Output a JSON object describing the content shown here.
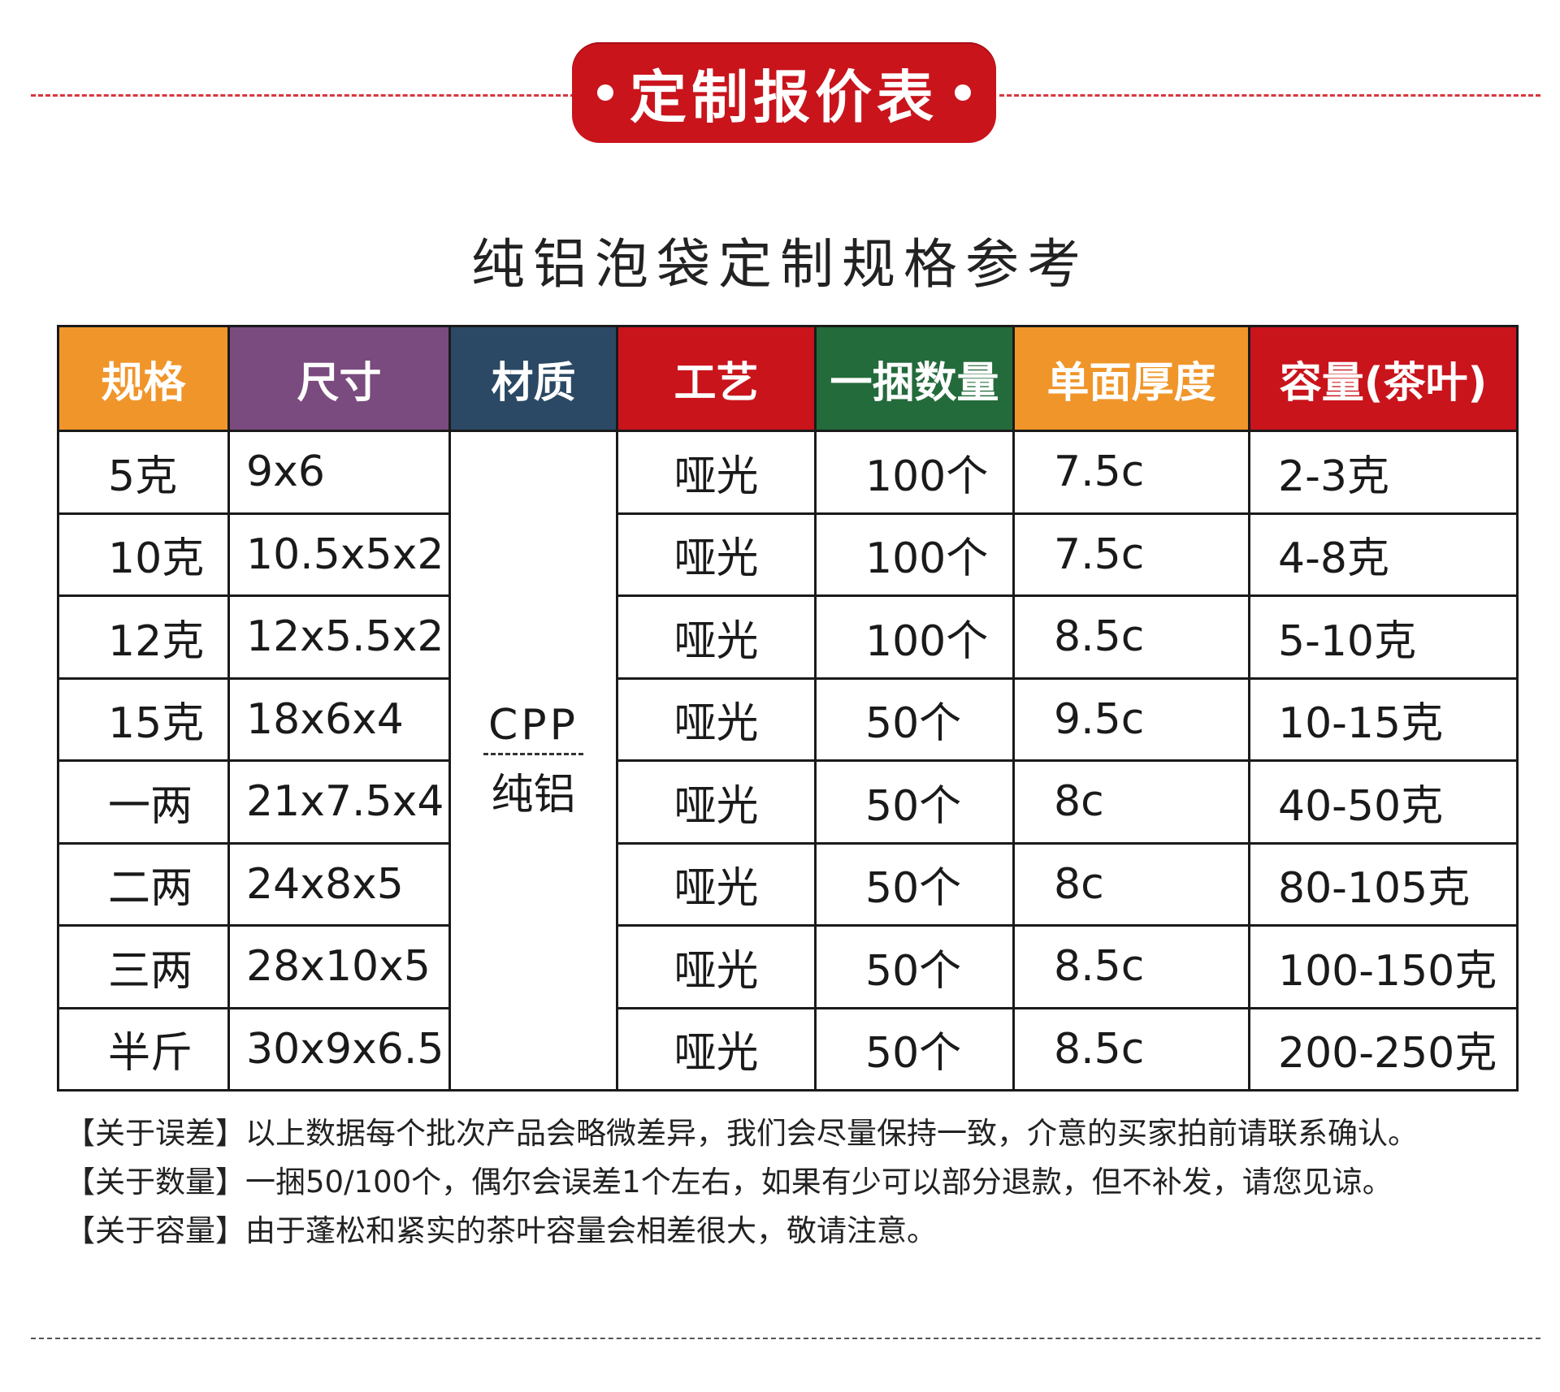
{
  "banner": {
    "title": "定制报价表"
  },
  "subtitle": "纯铝泡袋定制规格参考",
  "table": {
    "headers": [
      {
        "label": "规格",
        "color": "#f0952a"
      },
      {
        "label": "尺寸",
        "color": "#7a4b7e"
      },
      {
        "label": "材质",
        "color": "#2b4964"
      },
      {
        "label": "工艺",
        "color": "#c9141c"
      },
      {
        "label": "一捆数量",
        "color": "#246b3b"
      },
      {
        "label": "单面厚度",
        "color": "#f0952a"
      },
      {
        "label": "容量(茶叶)",
        "color": "#c9141c"
      }
    ],
    "material": {
      "top": "CPP",
      "bottom": "纯铝"
    },
    "rows": [
      {
        "spec": "5克",
        "size": "9x6",
        "craft": "哑光",
        "qty": "100个",
        "thickness": "7.5c",
        "capacity": "2-3克"
      },
      {
        "spec": "10克",
        "size": "10.5x5x2",
        "craft": "哑光",
        "qty": "100个",
        "thickness": "7.5c",
        "capacity": "4-8克"
      },
      {
        "spec": "12克",
        "size": "12x5.5x2",
        "craft": "哑光",
        "qty": "100个",
        "thickness": "8.5c",
        "capacity": "5-10克"
      },
      {
        "spec": "15克",
        "size": "18x6x4",
        "craft": "哑光",
        "qty": "50个",
        "thickness": "9.5c",
        "capacity": "10-15克"
      },
      {
        "spec": "一两",
        "size": "21x7.5x4",
        "craft": "哑光",
        "qty": "50个",
        "thickness": "8c",
        "capacity": "40-50克"
      },
      {
        "spec": "二两",
        "size": "24x8x5",
        "craft": "哑光",
        "qty": "50个",
        "thickness": "8c",
        "capacity": "80-105克"
      },
      {
        "spec": "三两",
        "size": "28x10x5",
        "craft": "哑光",
        "qty": "50个",
        "thickness": "8.5c",
        "capacity": "100-150克"
      },
      {
        "spec": "半斤",
        "size": "30x9x6.5",
        "craft": "哑光",
        "qty": "50个",
        "thickness": "8.5c",
        "capacity": "200-250克"
      }
    ]
  },
  "notes": [
    "【关于误差】以上数据每个批次产品会略微差异，我们会尽量保持一致，介意的买家拍前请联系确认。",
    "【关于数量】一捆50/100个，偶尔会误差1个左右，如果有少可以部分退款，但不补发，请您见谅。",
    "【关于容量】由于蓬松和紧实的茶叶容量会相差很大，敬请注意。"
  ]
}
